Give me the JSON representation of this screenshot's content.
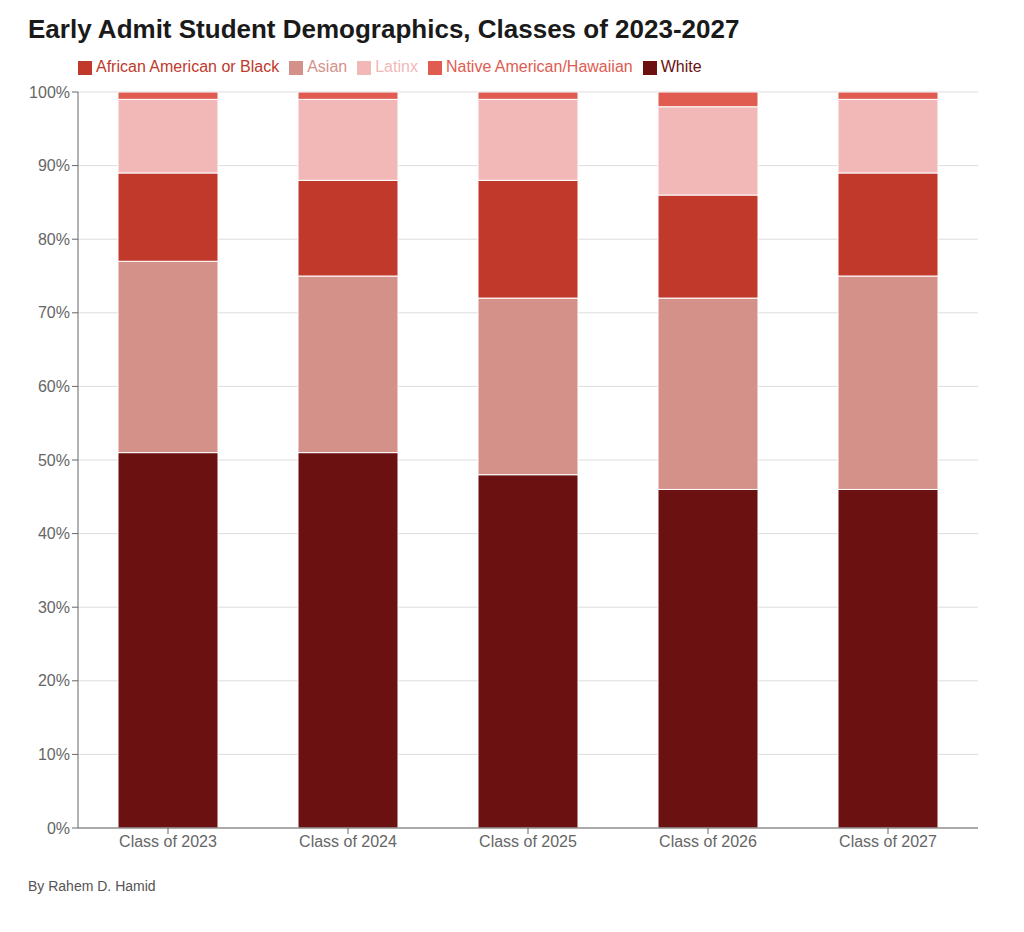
{
  "chart_data": {
    "type": "bar",
    "title": "Early Admit Student Demographics, Classes of 2023-2027",
    "categories": [
      "Class of 2023",
      "Class of 2024",
      "Class of 2025",
      "Class of 2026",
      "Class of 2027"
    ],
    "series": [
      {
        "name": "White",
        "color": "#6B1111",
        "values": [
          51,
          51,
          48,
          46,
          46
        ]
      },
      {
        "name": "Asian",
        "color": "#D4918A",
        "values": [
          26,
          24,
          24,
          26,
          29
        ]
      },
      {
        "name": "African American or Black",
        "color": "#C0392B",
        "values": [
          12,
          13,
          16,
          14,
          14
        ]
      },
      {
        "name": "Latinx",
        "color": "#F2B8B8",
        "values": [
          10,
          11,
          11,
          12,
          10
        ]
      },
      {
        "name": "Native American/Hawaiian",
        "color": "#E05C50",
        "values": [
          1,
          1,
          1,
          2,
          1
        ]
      }
    ],
    "ylim": [
      0,
      100
    ],
    "yticks": [
      {
        "value": 0,
        "label": "0%"
      },
      {
        "value": 10,
        "label": "10%"
      },
      {
        "value": 20,
        "label": "20%"
      },
      {
        "value": 30,
        "label": "30%"
      },
      {
        "value": 40,
        "label": "40%"
      },
      {
        "value": 50,
        "label": "50%"
      },
      {
        "value": 60,
        "label": "60%"
      },
      {
        "value": 70,
        "label": "70%"
      },
      {
        "value": 80,
        "label": "80%"
      },
      {
        "value": 90,
        "label": "90%"
      },
      {
        "value": 100,
        "label": "100%"
      }
    ],
    "stacked": true,
    "grid": true,
    "legend": "top",
    "annotations": [
      "By Rahem D. Hamid"
    ]
  }
}
